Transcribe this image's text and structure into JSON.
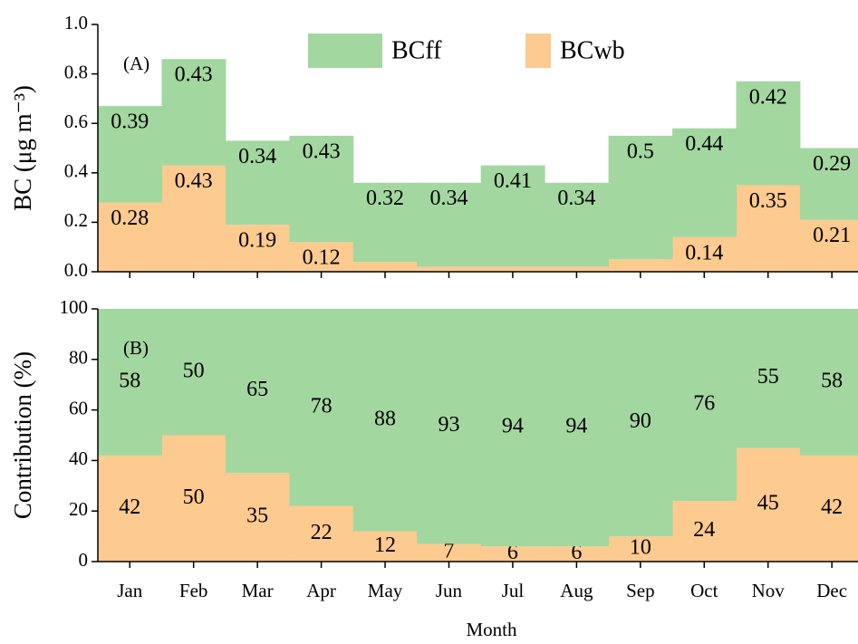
{
  "chart_data": [
    {
      "type": "bar",
      "stacked": true,
      "panel_label": "(A)",
      "ylabel": "BC (μg m⁻³)",
      "ylim": [
        0,
        1.0
      ],
      "yticks": [
        {
          "value": 0,
          "label": "0.0"
        },
        0.2,
        0.4,
        0.6,
        0.8,
        {
          "value": 1.0,
          "label": "1.0"
        }
      ],
      "series": [
        {
          "name": "BCwb",
          "color": "#fdca8f",
          "values": [
            0.28,
            0.43,
            0.19,
            0.12,
            0.04,
            0.02,
            0.02,
            0.02,
            0.05,
            0.14,
            0.35,
            0.21
          ],
          "value_labels": [
            "0.28",
            "0.43",
            "0.19",
            "0.12",
            null,
            null,
            null,
            null,
            null,
            "0.14",
            "0.35",
            "0.21"
          ]
        },
        {
          "name": "BCff",
          "color": "#a3d7a0",
          "values": [
            0.39,
            0.43,
            0.34,
            0.43,
            0.32,
            0.34,
            0.41,
            0.34,
            0.5,
            0.44,
            0.42,
            0.29
          ]
        }
      ]
    },
    {
      "type": "bar",
      "stacked": true,
      "panel_label": "(B)",
      "ylabel": "Contribution (%)",
      "xlabel": "Month",
      "categories": [
        "Jan",
        "Feb",
        "Mar",
        "Apr",
        "May",
        "Jun",
        "Jul",
        "Aug",
        "Sep",
        "Oct",
        "Nov",
        "Dec"
      ],
      "ylim": [
        0,
        100
      ],
      "yticks": [
        0,
        20,
        40,
        60,
        80,
        100
      ],
      "series": [
        {
          "color": "#fdca8f",
          "values": [
            42,
            50,
            35,
            22,
            12,
            7,
            6,
            6,
            10,
            24,
            45,
            42
          ]
        },
        {
          "color": "#a3d7a0",
          "values": [
            58,
            50,
            65,
            78,
            88,
            93,
            94,
            94,
            90,
            76,
            55,
            58
          ]
        }
      ]
    }
  ]
}
